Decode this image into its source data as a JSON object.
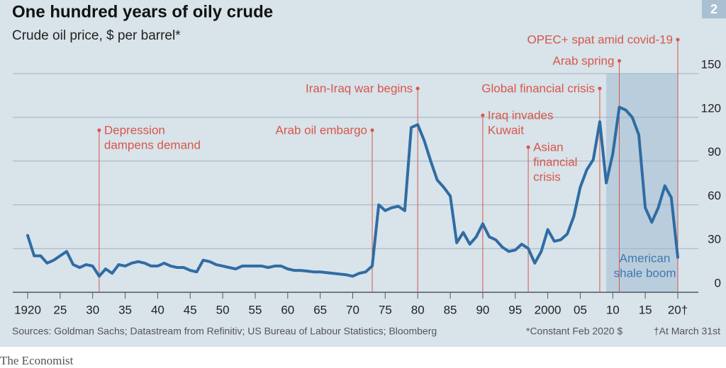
{
  "chart_data": {
    "type": "line",
    "title": "One hundred years of oily crude",
    "subtitle": "Crude oil price, $ per barrel*",
    "badge": "2",
    "x": [
      1920,
      1921,
      1922,
      1923,
      1924,
      1925,
      1926,
      1927,
      1928,
      1929,
      1930,
      1931,
      1932,
      1933,
      1934,
      1935,
      1936,
      1937,
      1938,
      1939,
      1940,
      1941,
      1942,
      1943,
      1944,
      1945,
      1946,
      1947,
      1948,
      1949,
      1950,
      1951,
      1952,
      1953,
      1954,
      1955,
      1956,
      1957,
      1958,
      1959,
      1960,
      1961,
      1962,
      1963,
      1964,
      1965,
      1966,
      1967,
      1968,
      1969,
      1970,
      1971,
      1972,
      1973,
      1974,
      1975,
      1976,
      1977,
      1978,
      1979,
      1980,
      1981,
      1982,
      1983,
      1984,
      1985,
      1986,
      1987,
      1988,
      1989,
      1990,
      1991,
      1992,
      1993,
      1994,
      1995,
      1996,
      1997,
      1998,
      1999,
      2000,
      2001,
      2002,
      2003,
      2004,
      2005,
      2006,
      2007,
      2008,
      2009,
      2010,
      2011,
      2012,
      2013,
      2014,
      2015,
      2016,
      2017,
      2018,
      2019,
      2020
    ],
    "values": [
      39,
      25,
      25,
      20,
      22,
      25,
      28,
      19,
      17,
      19,
      18,
      11,
      16,
      13,
      19,
      18,
      20,
      21,
      20,
      18,
      18,
      20,
      18,
      17,
      17,
      15,
      14,
      22,
      21,
      19,
      18,
      17,
      16,
      18,
      18,
      18,
      18,
      17,
      18,
      18,
      16,
      15,
      15,
      14.5,
      14,
      14,
      13.5,
      13,
      12.5,
      12,
      11,
      13,
      14,
      18,
      60,
      56,
      58,
      59,
      56,
      113,
      115,
      104,
      90,
      77,
      72,
      66,
      34,
      41,
      33,
      38,
      47,
      38,
      36,
      31,
      28,
      29,
      33,
      30,
      20,
      28,
      43,
      35,
      36,
      40,
      52,
      72,
      84,
      91,
      117,
      75,
      95,
      127,
      125,
      120,
      108,
      58,
      48,
      58,
      73,
      65,
      24
    ],
    "color": "#2f6ca3",
    "xlim": [
      1920,
      2020
    ],
    "ylim": [
      0,
      150
    ],
    "xticks": [
      1920,
      {
        "value": 1925,
        "label": "25"
      },
      {
        "value": 1930,
        "label": "30"
      },
      {
        "value": 1935,
        "label": "35"
      },
      {
        "value": 1940,
        "label": "40"
      },
      {
        "value": 1945,
        "label": "45"
      },
      {
        "value": 1950,
        "label": "50"
      },
      {
        "value": 1955,
        "label": "55"
      },
      {
        "value": 1960,
        "label": "60"
      },
      {
        "value": 1965,
        "label": "65"
      },
      {
        "value": 1970,
        "label": "70"
      },
      {
        "value": 1975,
        "label": "75"
      },
      {
        "value": 1980,
        "label": "80"
      },
      {
        "value": 1985,
        "label": "85"
      },
      {
        "value": 1990,
        "label": "90"
      },
      {
        "value": 1995,
        "label": "95"
      },
      2000,
      {
        "value": 2005,
        "label": "05"
      },
      {
        "value": 2010,
        "label": "10"
      },
      {
        "value": 2015,
        "label": "15"
      },
      {
        "value": 2020,
        "label": "20†"
      }
    ],
    "yticks": [
      0,
      30,
      60,
      90,
      120,
      150
    ],
    "grid": true,
    "annotations": [
      {
        "year": 1931,
        "text": [
          "Depression",
          "dampens demand"
        ]
      },
      {
        "year": 1973,
        "text": [
          "Arab oil embargo"
        ]
      },
      {
        "year": 1980,
        "text": [
          "Iran-Iraq war begins"
        ]
      },
      {
        "year": 1990,
        "text": [
          "Iraq invades",
          "Kuwait"
        ]
      },
      {
        "year": 1997,
        "text": [
          "Asian",
          "financial",
          "crisis"
        ]
      },
      {
        "year": 2008,
        "text": [
          "Global financial crisis"
        ]
      },
      {
        "year": 2011,
        "text": [
          "Arab spring"
        ]
      },
      {
        "year": 2020,
        "text": [
          "OPEC+ spat amid covid-19"
        ]
      }
    ],
    "shade": {
      "from": 2009,
      "to": 2020,
      "top": 150,
      "text": [
        "American",
        "shale boom"
      ]
    },
    "source": "Sources: Goldman Sachs; Datastream from Refinitiv; US Bureau of Labour Statistics; Bloomberg",
    "notes": [
      "*Constant Feb 2020 $",
      "†At March 31st"
    ],
    "publisher": "The Economist"
  }
}
